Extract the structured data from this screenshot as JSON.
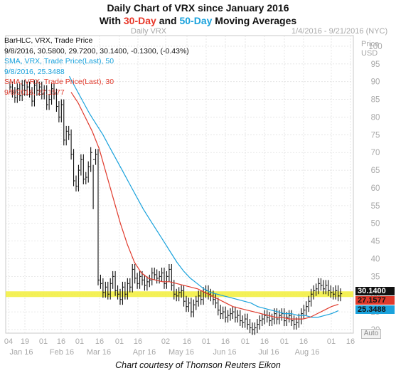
{
  "title": {
    "line1": "Daily Chart of VRX since January 2016",
    "line2_prefix": "With ",
    "line2_30": "30-Day",
    "line2_mid": " and ",
    "line2_50": "50-Day",
    "line2_suffix": " Moving Averages"
  },
  "header": {
    "chart_name": "Daily VRX",
    "date_range": "1/4/2016 - 9/21/2016 (NYC)"
  },
  "y_axis": {
    "label_line1": "Price",
    "label_line2": "USD"
  },
  "legend": {
    "bar_label": "BarHLC, VRX, Trade Price",
    "bar_values": "9/8/2016, 30.5800, 29.7200, 30.1400, -0.1300, (-0.43%)",
    "sma50_label": "SMA, VRX, Trade Price(Last),  50",
    "sma50_value": "9/8/2016, 25.3488",
    "sma30_label": "SMA, VRX, Trade Price(Last),  30",
    "sma30_value": "9/8/2016, 27.1577"
  },
  "price_tags": {
    "last": "30.1400",
    "sma30": "27.1577",
    "sma50": "25.3488"
  },
  "auto_button": "Auto",
  "caption": "Chart courtesy of Thomson Reuters Eikon",
  "colors": {
    "sma30": "#e03a2c",
    "sma50": "#1aa2dc",
    "price": "#111111",
    "highlight": "#f2ef3a"
  },
  "chart_data": {
    "type": "bar",
    "ylim": [
      19,
      103
    ],
    "y_ticks": [
      20,
      25,
      30,
      35,
      40,
      45,
      50,
      55,
      60,
      65,
      70,
      75,
      80,
      85,
      90,
      95,
      100
    ],
    "x_day_ticks": [
      "04",
      "19",
      "01",
      "16",
      "01",
      "16",
      "01",
      "16",
      "02",
      "16",
      "01",
      "16",
      "01",
      "16",
      "01",
      "16",
      "01",
      "16"
    ],
    "x_month_labels": [
      "Jan 16",
      "Feb 16",
      "Mar 16",
      "Apr 16",
      "May 16",
      "Jun 16",
      "Jul 16",
      "Aug 16"
    ],
    "highlight_level": 30,
    "grid": true,
    "series": [
      {
        "name": "BarHLC, VRX, Trade Price",
        "type": "hlc_bar",
        "close": [
          88.5,
          87,
          85.5,
          88,
          86,
          89,
          87.5,
          88.5,
          87,
          84.5,
          89,
          87.5,
          88.5,
          86.5,
          87.5,
          83.5,
          85,
          88,
          86.5,
          83,
          80,
          83.5,
          73.5,
          76,
          75,
          69.5,
          62,
          60.5,
          65,
          68,
          62.5,
          63,
          66,
          70,
          68,
          69.5,
          34,
          33,
          30.5,
          32,
          30,
          33,
          35,
          31,
          30,
          28.5,
          32,
          30,
          33,
          32,
          37,
          34.5,
          33,
          35,
          34,
          32.5,
          33.5,
          34,
          36,
          35.5,
          34.5,
          35,
          36,
          33,
          35,
          37,
          32.5,
          30,
          29.5,
          30.5,
          31,
          28,
          26.5,
          27.5,
          25,
          27,
          28,
          29.5,
          28.5,
          30.5,
          31,
          30,
          29.5,
          28.5,
          27.5,
          25.5,
          24.5,
          25,
          23.5,
          24,
          24.5,
          25,
          23.5,
          24,
          22.5,
          22,
          23,
          21.5,
          20.5,
          20,
          20.5,
          21.5,
          22.5,
          23,
          24,
          23.5,
          22.5,
          23,
          24.5,
          23,
          24,
          24.5,
          22.5,
          23.5,
          24,
          22.5,
          21.5,
          22,
          23,
          24.5,
          25.5,
          26.5,
          28,
          30,
          31,
          31.5,
          33,
          32.5,
          31.5,
          32.5,
          31,
          30.5,
          30,
          31,
          29.5,
          30.14
        ],
        "high_low_spread": "approx ±1.5"
      },
      {
        "name": "SMA, VRX, Trade Price(Last),  50",
        "type": "line",
        "values": [
          null,
          91.5,
          88,
          84.5,
          81,
          78,
          75,
          71.5,
          68,
          64.5,
          61,
          57.5,
          54,
          51,
          48,
          45,
          42,
          39,
          36.5,
          34.5,
          33,
          31.5,
          30.5,
          30,
          29.5,
          29,
          28.5,
          28,
          27.5,
          26.5,
          26,
          25.5,
          25,
          24.5,
          24.5,
          24,
          24,
          23.5,
          23.5,
          24,
          24.5,
          25.35
        ]
      },
      {
        "name": "SMA, VRX, Trade Price(Last),  30",
        "type": "line",
        "values": [
          87,
          84,
          80,
          76,
          71,
          64,
          57,
          50,
          44,
          39,
          36,
          34.5,
          34,
          33.5,
          33.5,
          33,
          32.5,
          32,
          31.5,
          30.5,
          29.5,
          28.5,
          27.5,
          26.5,
          26,
          25.5,
          25,
          24.5,
          24,
          23.5,
          23.5,
          23,
          23,
          23,
          23.5,
          24.5,
          25.5,
          26.5,
          27.16
        ]
      }
    ]
  }
}
